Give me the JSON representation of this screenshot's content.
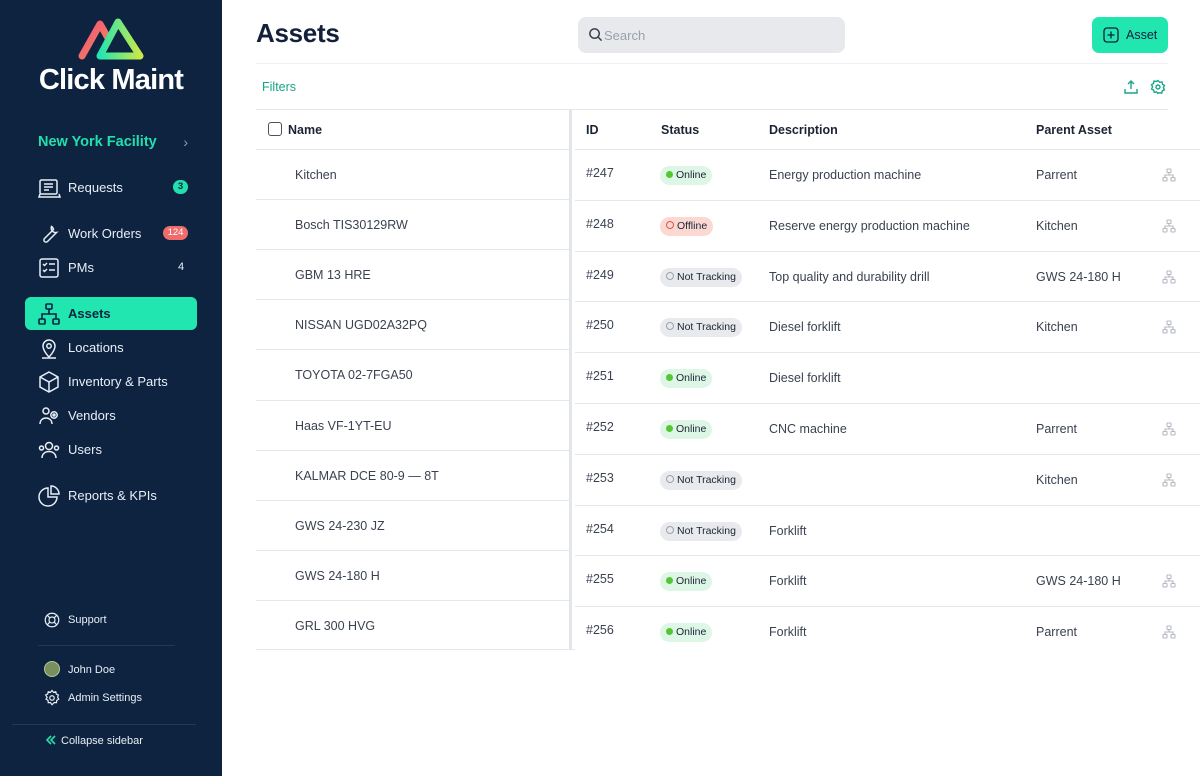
{
  "app": {
    "brand_name": "Click Maint",
    "facility": "New York Facility",
    "facility_chevron": "›",
    "accent_color": "#22e6b0",
    "sidebar_color": "#0e2340"
  },
  "sidebar": {
    "items": [
      {
        "label": "Requests",
        "icon": "requests-icon",
        "badge": "3",
        "badge_style": "green"
      },
      {
        "label": "Work Orders",
        "icon": "wrench-icon",
        "badge": "124",
        "badge_style": "red"
      },
      {
        "label": "PMs",
        "icon": "checklist-icon",
        "badge": "4",
        "badge_style": "plain"
      },
      {
        "label": "Assets",
        "icon": "hierarchy-icon",
        "active": true
      },
      {
        "label": "Locations",
        "icon": "location-pin-icon"
      },
      {
        "label": "Inventory & Parts",
        "icon": "box-icon"
      },
      {
        "label": "Vendors",
        "icon": "vendors-icon"
      },
      {
        "label": "Users",
        "icon": "users-icon"
      },
      {
        "label": "Reports & KPIs",
        "icon": "pie-chart-icon"
      }
    ],
    "support": "Support",
    "user_name": "John Doe",
    "admin_settings": "Admin Settings",
    "collapse": "Collapse sidebar"
  },
  "header": {
    "title": "Assets",
    "search_placeholder": "Search",
    "add_button": "Asset",
    "filters": "Filters"
  },
  "table": {
    "columns": {
      "name": "Name",
      "id": "ID",
      "status": "Status",
      "description": "Description",
      "parent": "Parent Asset"
    },
    "rows": [
      {
        "name": "Kitchen",
        "id": "#247",
        "status": "Online",
        "status_type": "online",
        "description": "Energy production machine",
        "parent": "Parrent"
      },
      {
        "name": "Bosch TIS30129RW",
        "id": "#248",
        "status": "Offline",
        "status_type": "offline",
        "description": "Reserve energy production machine",
        "parent": "Kitchen"
      },
      {
        "name": "GBM 13 HRE",
        "id": "#249",
        "status": "Not Tracking",
        "status_type": "nottracking",
        "description": "Top quality and durability drill",
        "parent": "GWS 24-180 H"
      },
      {
        "name": "NISSAN UGD02A32PQ",
        "id": "#250",
        "status": "Not Tracking",
        "status_type": "nottracking",
        "description": "Diesel forklift",
        "parent": "Kitchen"
      },
      {
        "name": "TOYOTA 02-7FGA50",
        "id": "#251",
        "status": "Online",
        "status_type": "online",
        "description": "Diesel forklift",
        "parent": ""
      },
      {
        "name": "Haas VF-1YT-EU",
        "id": "#252",
        "status": "Online",
        "status_type": "online",
        "description": "CNC machine",
        "parent": "Parrent"
      },
      {
        "name": "KALMAR DCE 80-9 — 8T",
        "id": "#253",
        "status": "Not Tracking",
        "status_type": "nottracking",
        "description": "",
        "parent": "Kitchen"
      },
      {
        "name": "GWS 24-230 JZ",
        "id": "#254",
        "status": "Not Tracking",
        "status_type": "nottracking",
        "description": "Forklift",
        "parent": ""
      },
      {
        "name": "GWS 24-180 H",
        "id": "#255",
        "status": "Online",
        "status_type": "online",
        "description": "Forklift",
        "parent": "GWS 24-180 H"
      },
      {
        "name": "GRL 300 HVG",
        "id": "#256",
        "status": "Online",
        "status_type": "online",
        "description": "Forklift",
        "parent": "Parrent"
      }
    ]
  }
}
